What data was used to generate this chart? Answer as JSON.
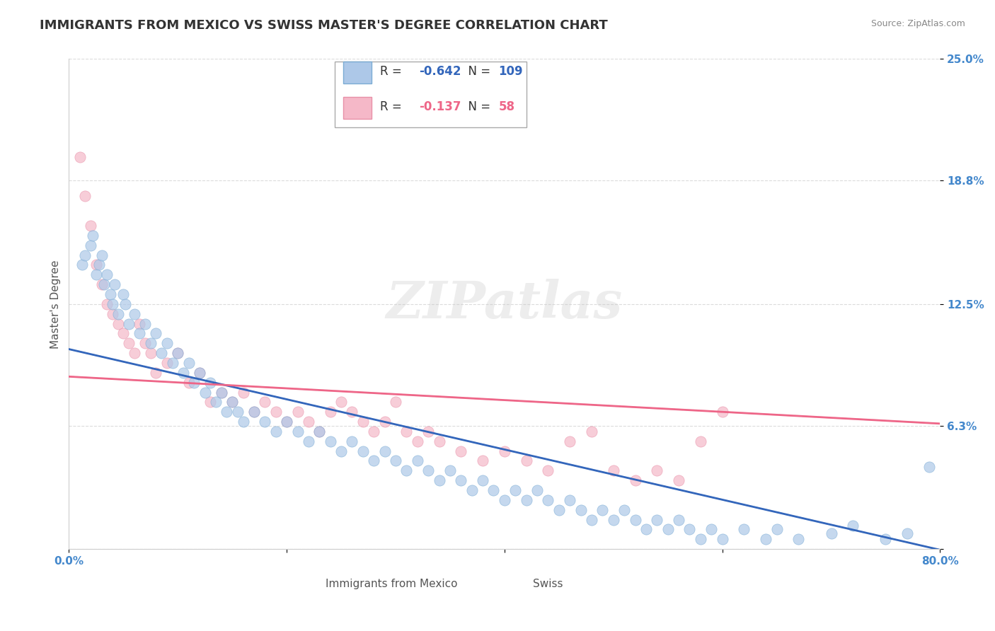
{
  "title": "IMMIGRANTS FROM MEXICO VS SWISS MASTER'S DEGREE CORRELATION CHART",
  "source": "Source: ZipAtlas.com",
  "xlabel": "",
  "ylabel": "Master's Degree",
  "xlim": [
    0.0,
    80.0
  ],
  "ylim": [
    0.0,
    25.0
  ],
  "x_ticks": [
    0.0,
    20.0,
    40.0,
    60.0,
    80.0
  ],
  "x_tick_labels": [
    "0.0%",
    "",
    "",
    "",
    "80.0%"
  ],
  "y_ticks": [
    0.0,
    6.3,
    12.5,
    18.8,
    25.0
  ],
  "y_tick_labels": [
    "",
    "6.3%",
    "12.5%",
    "18.8%",
    "25.0%"
  ],
  "legend_entries": [
    {
      "label": "Immigrants from Mexico",
      "color": "#a8c4e0",
      "R": "-0.642",
      "N": "109"
    },
    {
      "label": "Swiss",
      "color": "#f4a7b9",
      "R": "-0.137",
      "N": "58"
    }
  ],
  "blue_scatter_x": [
    1.2,
    1.5,
    2.0,
    2.2,
    2.5,
    2.8,
    3.0,
    3.2,
    3.5,
    3.8,
    4.0,
    4.2,
    4.5,
    5.0,
    5.2,
    5.5,
    6.0,
    6.5,
    7.0,
    7.5,
    8.0,
    8.5,
    9.0,
    9.5,
    10.0,
    10.5,
    11.0,
    11.5,
    12.0,
    12.5,
    13.0,
    13.5,
    14.0,
    14.5,
    15.0,
    15.5,
    16.0,
    17.0,
    18.0,
    19.0,
    20.0,
    21.0,
    22.0,
    23.0,
    24.0,
    25.0,
    26.0,
    27.0,
    28.0,
    29.0,
    30.0,
    31.0,
    32.0,
    33.0,
    34.0,
    35.0,
    36.0,
    37.0,
    38.0,
    39.0,
    40.0,
    41.0,
    42.0,
    43.0,
    44.0,
    45.0,
    46.0,
    47.0,
    48.0,
    49.0,
    50.0,
    51.0,
    52.0,
    53.0,
    54.0,
    55.0,
    56.0,
    57.0,
    58.0,
    59.0,
    60.0,
    62.0,
    64.0,
    65.0,
    67.0,
    70.0,
    72.0,
    75.0,
    77.0,
    79.0
  ],
  "blue_scatter_y": [
    14.5,
    15.0,
    15.5,
    16.0,
    14.0,
    14.5,
    15.0,
    13.5,
    14.0,
    13.0,
    12.5,
    13.5,
    12.0,
    13.0,
    12.5,
    11.5,
    12.0,
    11.0,
    11.5,
    10.5,
    11.0,
    10.0,
    10.5,
    9.5,
    10.0,
    9.0,
    9.5,
    8.5,
    9.0,
    8.0,
    8.5,
    7.5,
    8.0,
    7.0,
    7.5,
    7.0,
    6.5,
    7.0,
    6.5,
    6.0,
    6.5,
    6.0,
    5.5,
    6.0,
    5.5,
    5.0,
    5.5,
    5.0,
    4.5,
    5.0,
    4.5,
    4.0,
    4.5,
    4.0,
    3.5,
    4.0,
    3.5,
    3.0,
    3.5,
    3.0,
    2.5,
    3.0,
    2.5,
    3.0,
    2.5,
    2.0,
    2.5,
    2.0,
    1.5,
    2.0,
    1.5,
    2.0,
    1.5,
    1.0,
    1.5,
    1.0,
    1.5,
    1.0,
    0.5,
    1.0,
    0.5,
    1.0,
    0.5,
    1.0,
    0.5,
    0.8,
    1.2,
    0.5,
    0.8,
    4.2
  ],
  "pink_scatter_x": [
    1.0,
    1.5,
    2.0,
    2.5,
    3.0,
    3.5,
    4.0,
    4.5,
    5.0,
    5.5,
    6.0,
    6.5,
    7.0,
    7.5,
    8.0,
    9.0,
    10.0,
    11.0,
    12.0,
    13.0,
    14.0,
    15.0,
    16.0,
    17.0,
    18.0,
    19.0,
    20.0,
    21.0,
    22.0,
    23.0,
    24.0,
    25.0,
    26.0,
    27.0,
    28.0,
    29.0,
    30.0,
    31.0,
    32.0,
    33.0,
    34.0,
    36.0,
    38.0,
    40.0,
    42.0,
    44.0,
    46.0,
    48.0,
    50.0,
    52.0,
    54.0,
    56.0,
    58.0,
    60.0
  ],
  "pink_scatter_y": [
    20.0,
    18.0,
    16.5,
    14.5,
    13.5,
    12.5,
    12.0,
    11.5,
    11.0,
    10.5,
    10.0,
    11.5,
    10.5,
    10.0,
    9.0,
    9.5,
    10.0,
    8.5,
    9.0,
    7.5,
    8.0,
    7.5,
    8.0,
    7.0,
    7.5,
    7.0,
    6.5,
    7.0,
    6.5,
    6.0,
    7.0,
    7.5,
    7.0,
    6.5,
    6.0,
    6.5,
    7.5,
    6.0,
    5.5,
    6.0,
    5.5,
    5.0,
    4.5,
    5.0,
    4.5,
    4.0,
    5.5,
    6.0,
    4.0,
    3.5,
    4.0,
    3.5,
    5.5,
    7.0
  ],
  "blue_line_x": [
    0.0,
    80.0
  ],
  "blue_line_y_intercept": 10.2,
  "blue_line_slope": -0.128,
  "pink_line_x": [
    0.0,
    80.0
  ],
  "pink_line_y_intercept": 8.8,
  "pink_line_slope": -0.03,
  "watermark": "ZIPatlas",
  "bg_color": "#ffffff",
  "title_color": "#333333",
  "title_fontsize": 13,
  "axis_label_color": "#555555",
  "tick_label_color": "#4488cc",
  "source_color": "#888888",
  "grid_color": "#cccccc",
  "blue_dot_color": "#adc8e8",
  "blue_dot_edge": "#7bacd4",
  "pink_dot_color": "#f5b8c8",
  "pink_dot_edge": "#e890a8",
  "blue_line_color": "#3366bb",
  "pink_line_color": "#ee6688",
  "dot_size": 120,
  "dot_alpha": 0.7
}
